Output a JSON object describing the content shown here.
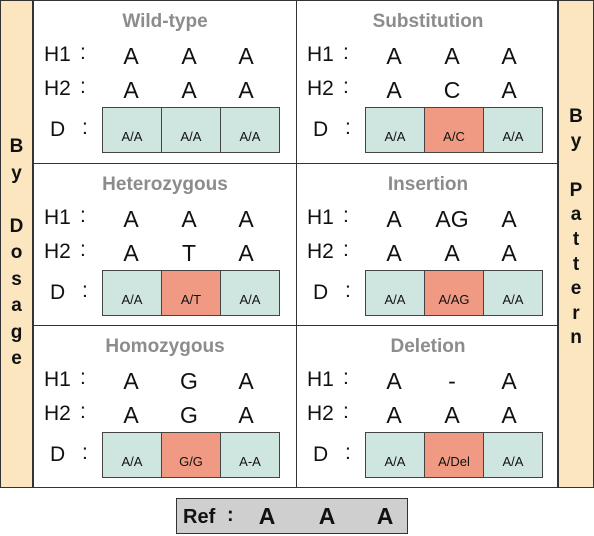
{
  "left_label": [
    "B",
    "y",
    "",
    "D",
    "o",
    "s",
    "a",
    "g",
    "e"
  ],
  "right_label": [
    "B",
    "y",
    "",
    "P",
    "a",
    "t",
    "t",
    "e",
    "r",
    "n"
  ],
  "row_labels": {
    "h1": "H1",
    "h2": "H2",
    "d": "D",
    "sep": ":"
  },
  "panels": [
    {
      "title": "Wild-type",
      "h1": [
        "A",
        "A",
        "A"
      ],
      "h2": [
        "A",
        "A",
        "A"
      ],
      "d": [
        "A/A",
        "A/A",
        "A/A"
      ],
      "variant_index": -1
    },
    {
      "title": "Substitution",
      "h1": [
        "A",
        "A",
        "A"
      ],
      "h2": [
        "A",
        "C",
        "A"
      ],
      "d": [
        "A/A",
        "A/C",
        "A/A"
      ],
      "variant_index": 1
    },
    {
      "title": "Heterozygous",
      "h1": [
        "A",
        "A",
        "A"
      ],
      "h2": [
        "A",
        "T",
        "A"
      ],
      "d": [
        "A/A",
        "A/T",
        "A/A"
      ],
      "variant_index": 1
    },
    {
      "title": "Insertion",
      "h1": [
        "A",
        "AG",
        "A"
      ],
      "h2": [
        "A",
        "A",
        "A"
      ],
      "d": [
        "A/A",
        "A/AG",
        "A/A"
      ],
      "variant_index": 1
    },
    {
      "title": "Homozygous",
      "h1": [
        "A",
        "G",
        "A"
      ],
      "h2": [
        "A",
        "G",
        "A"
      ],
      "d": [
        "A/A",
        "G/G",
        "A-A"
      ],
      "variant_index": 1
    },
    {
      "title": "Deletion",
      "h1": [
        "A",
        "-",
        "A"
      ],
      "h2": [
        "A",
        "A",
        "A"
      ],
      "d": [
        "A/A",
        "A/Del",
        "A/A"
      ],
      "variant_index": 1
    }
  ],
  "reference": {
    "label": "Ref",
    "sep": ":",
    "bases": [
      "A",
      "A",
      "A"
    ]
  },
  "colors": {
    "normal_cell": "#cfe5df",
    "variant_cell": "#f09a84",
    "side_bar": "#fbe6bf",
    "ref_box": "#cfcfcf",
    "title_gray": "#8c8c8c"
  }
}
